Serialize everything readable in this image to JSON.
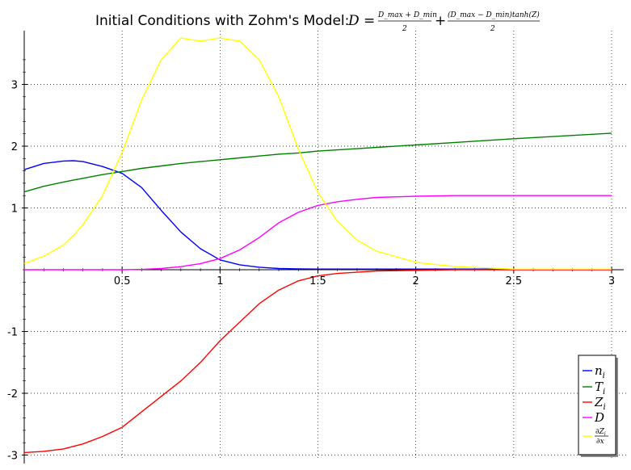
{
  "chart_data": {
    "type": "line",
    "title": "Initial Conditions with Zohm's Model:",
    "title_math": {
      "lhs": "D =",
      "frac1_num": "D_max + D_min",
      "frac1_den": "2",
      "plus": "+",
      "frac2_num": "(D_max − D_min)tanh(Z)",
      "frac2_den": "2"
    },
    "xlabel": "",
    "ylabel": "",
    "xlim": [
      0,
      3
    ],
    "ylim": [
      -3,
      3.8
    ],
    "x_ticks": [
      0.5,
      1,
      1.5,
      2,
      2.5,
      3
    ],
    "x_tick_labels": [
      "0.5",
      "1",
      "1.5",
      "2",
      "2.5",
      "3"
    ],
    "y_ticks": [
      -3,
      -2,
      -1,
      1,
      2,
      3
    ],
    "y_tick_labels": [
      "-3",
      "-2",
      "-1",
      "1",
      "2",
      "3"
    ],
    "grid": true,
    "legend_position": "bottom-right",
    "x": [
      0,
      0.1,
      0.2,
      0.25,
      0.3,
      0.4,
      0.5,
      0.6,
      0.7,
      0.8,
      0.9,
      1.0,
      1.1,
      1.2,
      1.3,
      1.4,
      1.5,
      1.6,
      1.7,
      1.8,
      2.0,
      2.2,
      2.5,
      3.0
    ],
    "series": [
      {
        "name": "n_i",
        "color": "#0000ff",
        "values": [
          1.62,
          1.72,
          1.76,
          1.765,
          1.75,
          1.67,
          1.56,
          1.33,
          0.96,
          0.61,
          0.34,
          0.16,
          0.08,
          0.04,
          0.02,
          0.015,
          0.01,
          0.01,
          0.01,
          0.01,
          0.01,
          0.01,
          0.01,
          0.01
        ]
      },
      {
        "name": "T_i",
        "color": "#008000",
        "values": [
          1.26,
          1.35,
          1.42,
          1.45,
          1.48,
          1.54,
          1.59,
          1.64,
          1.68,
          1.72,
          1.75,
          1.78,
          1.81,
          1.84,
          1.87,
          1.89,
          1.92,
          1.94,
          1.96,
          1.98,
          2.02,
          2.06,
          2.12,
          2.21
        ]
      },
      {
        "name": "Z_i",
        "color": "#ff0000",
        "values": [
          -2.96,
          -2.94,
          -2.9,
          -2.86,
          -2.82,
          -2.7,
          -2.55,
          -2.3,
          -2.05,
          -1.8,
          -1.5,
          -1.15,
          -0.85,
          -0.55,
          -0.33,
          -0.18,
          -0.1,
          -0.06,
          -0.04,
          -0.02,
          -0.01,
          0,
          0,
          0
        ]
      },
      {
        "name": "D",
        "color": "#ff00ff",
        "values": [
          0,
          0,
          0,
          0,
          0,
          0,
          0,
          0.005,
          0.02,
          0.05,
          0.1,
          0.18,
          0.32,
          0.52,
          0.76,
          0.93,
          1.04,
          1.1,
          1.14,
          1.17,
          1.19,
          1.2,
          1.2,
          1.2
        ]
      },
      {
        "name": "dZ_i/dx",
        "color": "#ffff00",
        "values": [
          0.1,
          0.22,
          0.4,
          0.55,
          0.73,
          1.2,
          1.9,
          2.75,
          3.4,
          3.75,
          3.7,
          3.75,
          3.7,
          3.4,
          2.8,
          1.95,
          1.25,
          0.78,
          0.48,
          0.3,
          0.12,
          0.05,
          0.01,
          0.01
        ]
      }
    ],
    "legend": [
      {
        "label": "n",
        "sub": "i",
        "frac": false
      },
      {
        "label": "T",
        "sub": "i",
        "frac": false
      },
      {
        "label": "Z",
        "sub": "i",
        "frac": false
      },
      {
        "label": "D",
        "sub": "",
        "frac": false
      },
      {
        "label": "",
        "sub": "",
        "frac": true,
        "num": "∂Z",
        "num_sub": "i",
        "den": "∂x"
      }
    ]
  }
}
